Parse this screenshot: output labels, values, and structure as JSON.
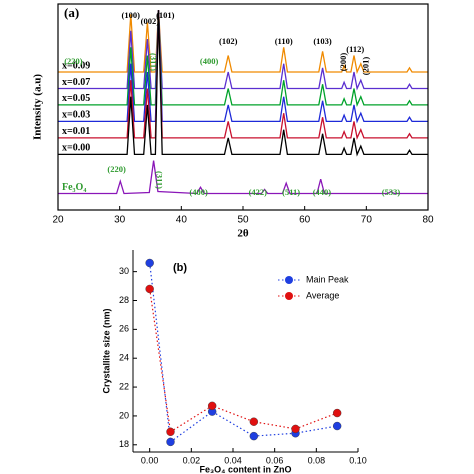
{
  "chart_data": [
    {
      "type": "line",
      "panel": "(a)",
      "xlabel": "2θ",
      "ylabel": "Intensity (a.u)",
      "xlim": [
        20,
        80
      ],
      "xticks": [
        20,
        30,
        40,
        50,
        60,
        70,
        80
      ],
      "ylim": [
        0,
        100
      ],
      "series": [
        {
          "name": "x=0.09",
          "color": "#f08a00",
          "x": [
            20,
            31.2,
            31.8,
            32.4,
            33.9,
            34.5,
            35.1,
            35.8,
            36.3,
            36.9,
            47.0,
            47.6,
            48.2,
            56.0,
            56.6,
            57.2,
            62.3,
            62.9,
            63.5,
            66.0,
            66.4,
            66.8,
            67.5,
            68.0,
            68.5,
            69.1,
            69.6,
            76.6,
            77.0,
            77.4,
            80
          ],
          "values": [
            67,
            67,
            95,
            67,
            67,
            91,
            67,
            67,
            97,
            67,
            67,
            75,
            67,
            67,
            79,
            67,
            67,
            77,
            67,
            67,
            70,
            67,
            67,
            75,
            67,
            71,
            67,
            67,
            69,
            67,
            67
          ]
        },
        {
          "name": "x=0.07",
          "color": "#5a2fd0",
          "x": [
            20,
            31.2,
            31.8,
            32.4,
            33.9,
            34.5,
            35.1,
            35.8,
            36.3,
            36.9,
            47.0,
            47.6,
            48.2,
            56.0,
            56.6,
            57.2,
            62.3,
            62.9,
            63.5,
            66.0,
            66.4,
            66.8,
            67.5,
            68.0,
            68.5,
            69.1,
            69.6,
            76.6,
            77.0,
            77.4,
            80
          ],
          "values": [
            59,
            59,
            87,
            59,
            59,
            83,
            59,
            59,
            97,
            59,
            59,
            67,
            59,
            59,
            71,
            59,
            59,
            69,
            59,
            59,
            62,
            59,
            59,
            67,
            59,
            63,
            59,
            59,
            61,
            59,
            59
          ]
        },
        {
          "name": "x=0.05",
          "color": "#00a22a",
          "x": [
            20,
            31.2,
            31.8,
            32.4,
            33.9,
            34.5,
            35.1,
            35.8,
            36.3,
            36.9,
            47.0,
            47.6,
            48.2,
            56.0,
            56.6,
            57.2,
            62.3,
            62.9,
            63.5,
            66.0,
            66.4,
            66.8,
            67.5,
            68.0,
            68.5,
            69.1,
            69.6,
            76.6,
            77.0,
            77.4,
            80
          ],
          "values": [
            51,
            51,
            79,
            51,
            51,
            75,
            51,
            51,
            97,
            51,
            51,
            59,
            51,
            51,
            63,
            51,
            51,
            61,
            51,
            51,
            54,
            51,
            51,
            59,
            51,
            55,
            51,
            51,
            53,
            51,
            51
          ]
        },
        {
          "name": "x=0.03",
          "color": "#1e2ad8",
          "x": [
            20,
            31.2,
            31.8,
            32.4,
            33.9,
            34.5,
            35.1,
            35.8,
            36.3,
            36.9,
            47.0,
            47.6,
            48.2,
            56.0,
            56.6,
            57.2,
            62.3,
            62.9,
            63.5,
            66.0,
            66.4,
            66.8,
            67.5,
            68.0,
            68.5,
            69.1,
            69.6,
            76.6,
            77.0,
            77.4,
            80
          ],
          "values": [
            43,
            43,
            71,
            43,
            43,
            67,
            43,
            43,
            97,
            43,
            43,
            51,
            43,
            43,
            55,
            43,
            43,
            53,
            43,
            43,
            46,
            43,
            43,
            51,
            43,
            47,
            43,
            43,
            45,
            43,
            43
          ]
        },
        {
          "name": "x=0.01",
          "color": "#c8102e",
          "x": [
            20,
            31.2,
            31.8,
            32.4,
            33.9,
            34.5,
            35.1,
            35.8,
            36.3,
            36.9,
            47.0,
            47.6,
            48.2,
            56.0,
            56.6,
            57.2,
            62.3,
            62.9,
            63.5,
            66.0,
            66.4,
            66.8,
            67.5,
            68.0,
            68.5,
            69.1,
            69.6,
            76.6,
            77.0,
            77.4,
            80
          ],
          "values": [
            35,
            35,
            63,
            35,
            35,
            59,
            35,
            35,
            97,
            35,
            35,
            43,
            35,
            35,
            47,
            35,
            35,
            45,
            35,
            35,
            38,
            35,
            35,
            43,
            35,
            39,
            35,
            35,
            37,
            35,
            35
          ]
        },
        {
          "name": "x=0.00",
          "color": "#000000",
          "x": [
            20,
            31.2,
            31.8,
            32.4,
            33.9,
            34.5,
            35.1,
            35.8,
            36.3,
            36.9,
            47.0,
            47.6,
            48.2,
            56.0,
            56.6,
            57.2,
            62.3,
            62.9,
            63.5,
            66.0,
            66.4,
            66.8,
            67.5,
            68.0,
            68.5,
            69.1,
            69.6,
            76.6,
            77.0,
            77.4,
            80
          ],
          "values": [
            27,
            27,
            55,
            27,
            27,
            51,
            27,
            27,
            97,
            27,
            27,
            35,
            27,
            27,
            39,
            27,
            27,
            37,
            27,
            27,
            30,
            27,
            27,
            35,
            27,
            31,
            27,
            27,
            29,
            27,
            27
          ]
        },
        {
          "name": "Fe₃O₄",
          "color": "#8a16b8",
          "name_color": "#2e9a2e",
          "x": [
            20,
            29.5,
            30.1,
            30.7,
            34.8,
            35.5,
            36.2,
            42.5,
            43.1,
            43.7,
            53.0,
            53.5,
            54.0,
            56.4,
            57.0,
            57.6,
            62.0,
            62.6,
            63.2,
            73.5,
            74.0,
            74.5,
            80
          ],
          "values": [
            8,
            8,
            14,
            8,
            8.5,
            24,
            9,
            8,
            11,
            8,
            8,
            10,
            8,
            8,
            13,
            8,
            8,
            15,
            8,
            8,
            9,
            8,
            8
          ]
        }
      ],
      "peak_labels": [
        {
          "text": "(100)",
          "color": "#000000"
        },
        {
          "text": "(002)",
          "color": "#000000"
        },
        {
          "text": "(101)",
          "color": "#000000"
        },
        {
          "text": "(102)",
          "color": "#000000"
        },
        {
          "text": "(110)",
          "color": "#000000"
        },
        {
          "text": "(103)",
          "color": "#000000"
        },
        {
          "text": "(200)",
          "color": "#000000"
        },
        {
          "text": "(112)",
          "color": "#000000"
        },
        {
          "text": "(201)",
          "color": "#000000"
        },
        {
          "text": "(220)",
          "color": "#2e9a2e"
        },
        {
          "text": "(311)",
          "color": "#2e9a2e"
        },
        {
          "text": "(400)",
          "color": "#2e9a2e"
        },
        {
          "text": "(220)",
          "color": "#2e9a2e"
        },
        {
          "text": "(311)",
          "color": "#2e9a2e"
        },
        {
          "text": "(400)",
          "color": "#2e9a2e"
        },
        {
          "text": "(422)",
          "color": "#2e9a2e"
        },
        {
          "text": "(511)",
          "color": "#2e9a2e"
        },
        {
          "text": "(440)",
          "color": "#2e9a2e"
        },
        {
          "text": "(533)",
          "color": "#2e9a2e"
        }
      ]
    },
    {
      "type": "scatter",
      "panel": "(b)",
      "xlabel": "Fe₃O₄ content in ZnO",
      "ylabel": "Crystallite size (nm)",
      "xlim": [
        -0.008,
        0.1
      ],
      "ylim": [
        17.5,
        31.5
      ],
      "xticks": [
        {
          "value": 0,
          "label": "0.00"
        },
        {
          "value": 0.02,
          "label": "0.02"
        },
        {
          "value": 0.04,
          "label": "0.04"
        },
        {
          "value": 0.06,
          "label": "0.06"
        },
        {
          "value": 0.08,
          "label": "0.08"
        },
        {
          "value": 0.1,
          "label": "0.10"
        }
      ],
      "yticks": [
        18,
        20,
        22,
        24,
        26,
        28,
        30
      ],
      "linestyle": "dotted",
      "legend": "upper right",
      "series": [
        {
          "name": "Main Peak",
          "color": "#1f3fe0",
          "x": [
            0,
            0.01,
            0.03,
            0.05,
            0.07,
            0.09
          ],
          "values": [
            30.6,
            18.2,
            20.3,
            18.6,
            18.8,
            19.3
          ]
        },
        {
          "name": "Average",
          "color": "#e01010",
          "x": [
            0,
            0.01,
            0.03,
            0.05,
            0.07,
            0.09
          ],
          "values": [
            28.8,
            18.9,
            20.7,
            19.6,
            19.1,
            20.2
          ]
        }
      ]
    }
  ]
}
